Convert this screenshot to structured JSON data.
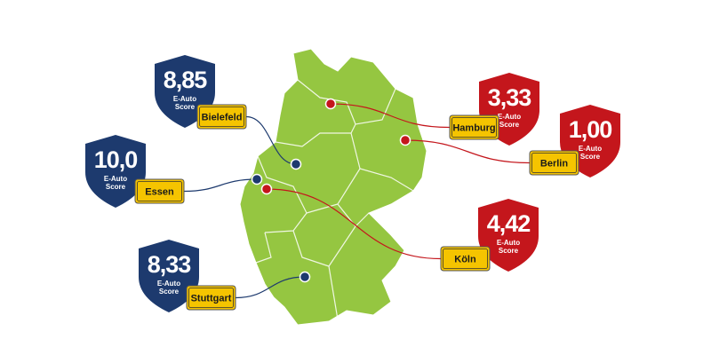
{
  "cities": [
    {
      "name": "Bielefeld",
      "score": "8,85",
      "score_label": [
        "E-Auto",
        "Score"
      ],
      "color": "#1d3a6e"
    },
    {
      "name": "Essen",
      "score": "10,0",
      "score_label": [
        "E-Auto",
        "Score"
      ],
      "color": "#1d3a6e"
    },
    {
      "name": "Stuttgart",
      "score": "8,33",
      "score_label": [
        "E-Auto",
        "Score"
      ],
      "color": "#1d3a6e"
    },
    {
      "name": "Hamburg",
      "score": "3,33",
      "score_label": [
        "E-Auto",
        "Score"
      ],
      "color": "#c4161c"
    },
    {
      "name": "Berlin",
      "score": "1,00",
      "score_label": [
        "E-Auto",
        "Score"
      ],
      "color": "#c4161c"
    },
    {
      "name": "Köln",
      "score": "4,42",
      "score_label": [
        "E-Auto",
        "Score"
      ],
      "color": "#c4161c"
    }
  ]
}
